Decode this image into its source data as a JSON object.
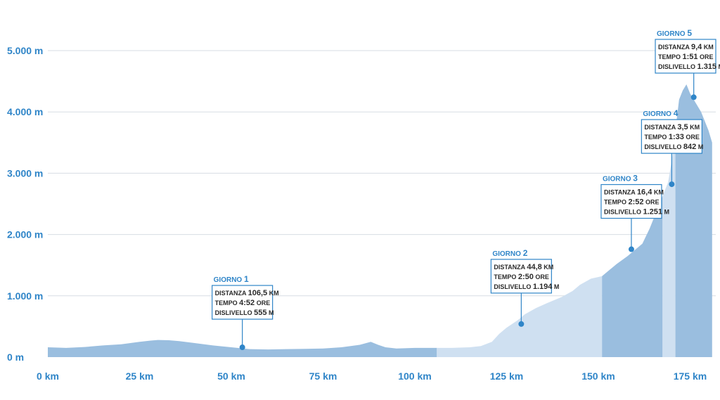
{
  "chart_data": {
    "type": "area",
    "xlim": [
      0,
      182
    ],
    "ylim": [
      0,
      5000
    ],
    "x_ticks": [
      {
        "value": 0,
        "label": "0 km"
      },
      {
        "value": 25,
        "label": "25 km"
      },
      {
        "value": 50,
        "label": "50 km"
      },
      {
        "value": 75,
        "label": "75 km"
      },
      {
        "value": 100,
        "label": "100 km"
      },
      {
        "value": 125,
        "label": "125 km"
      },
      {
        "value": 150,
        "label": "150 km"
      },
      {
        "value": 175,
        "label": "175 km"
      }
    ],
    "y_ticks": [
      {
        "value": 0,
        "label": "0 m"
      },
      {
        "value": 1000,
        "label": "1.000 m"
      },
      {
        "value": 2000,
        "label": "2.000 m"
      },
      {
        "value": 3000,
        "label": "3.000 m"
      },
      {
        "value": 4000,
        "label": "4.000 m"
      },
      {
        "value": 5000,
        "label": "5.000 m"
      }
    ],
    "grid": true,
    "profile": {
      "x": [
        0,
        5,
        10,
        15,
        20,
        25,
        28,
        30,
        33,
        36,
        40,
        45,
        50,
        55,
        60,
        65,
        70,
        75,
        80,
        85,
        88,
        90,
        92,
        95,
        100,
        106,
        110,
        115,
        118,
        121,
        123,
        125,
        128,
        130,
        133,
        136,
        140,
        143,
        145,
        148,
        151,
        153,
        155,
        158,
        160,
        162,
        164,
        166,
        168,
        169,
        170,
        171,
        172,
        173,
        174,
        175,
        176,
        178,
        180,
        181
      ],
      "y": [
        160,
        150,
        165,
        190,
        210,
        250,
        270,
        280,
        275,
        260,
        230,
        190,
        160,
        130,
        125,
        130,
        135,
        140,
        160,
        200,
        250,
        200,
        160,
        140,
        150,
        150,
        150,
        160,
        180,
        250,
        380,
        480,
        600,
        700,
        800,
        880,
        980,
        1080,
        1180,
        1280,
        1320,
        1420,
        1520,
        1650,
        1750,
        1850,
        2100,
        2400,
        2700,
        2850,
        3200,
        3700,
        4200,
        4350,
        4450,
        4300,
        4200,
        4000,
        3700,
        3500
      ]
    },
    "segments": [
      {
        "start": 0,
        "end": 106,
        "color": "#9abedf"
      },
      {
        "start": 106,
        "end": 151,
        "color": "#cfe0f1"
      },
      {
        "start": 151,
        "end": 167.5,
        "color": "#9abedf"
      },
      {
        "start": 167.5,
        "end": 171,
        "color": "#cfe0f1"
      },
      {
        "start": 171,
        "end": 181,
        "color": "#9abedf"
      }
    ],
    "days": [
      {
        "title": "GIORNO",
        "num": "1",
        "x": 53,
        "y": 160,
        "dist_label": "DISTANZA",
        "dist_value": "106,5",
        "dist_unit": "KM",
        "time_label": "TEMPO",
        "time_value": "4:52",
        "time_unit": "ORE",
        "elev_label": "DISLIVELLO",
        "elev_value": "555",
        "elev_unit": "M"
      },
      {
        "title": "GIORNO",
        "num": "2",
        "x": 129,
        "y": 540,
        "dist_label": "DISTANZA",
        "dist_value": "44,8",
        "dist_unit": "KM",
        "time_label": "TEMPO",
        "time_value": "2:50",
        "time_unit": "ORE",
        "elev_label": "DISLIVELLO",
        "elev_value": "1.194",
        "elev_unit": "M"
      },
      {
        "title": "GIORNO",
        "num": "3",
        "x": 159,
        "y": 1760,
        "dist_label": "DISTANZA",
        "dist_value": "16,4",
        "dist_unit": "KM",
        "time_label": "TEMPO",
        "time_value": "2:52",
        "time_unit": "ORE",
        "elev_label": "DISLIVELLO",
        "elev_value": "1.251",
        "elev_unit": "M"
      },
      {
        "title": "GIORNO",
        "num": "4",
        "x": 170,
        "y": 2820,
        "dist_label": "DISTANZA",
        "dist_value": "3,5",
        "dist_unit": "KM",
        "time_label": "TEMPO",
        "time_value": "1:33",
        "time_unit": "ORE",
        "elev_label": "DISLIVELLO",
        "elev_value": "842",
        "elev_unit": "M"
      },
      {
        "title": "GIORNO",
        "num": "5",
        "x": 176,
        "y": 4240,
        "dist_label": "DISTANZA",
        "dist_value": "9,4",
        "dist_unit": "KM",
        "time_label": "TEMPO",
        "time_value": "1:51",
        "time_unit": "ORE",
        "elev_label": "DISLIVELLO",
        "elev_value": "1.315",
        "elev_unit": "M"
      }
    ]
  }
}
